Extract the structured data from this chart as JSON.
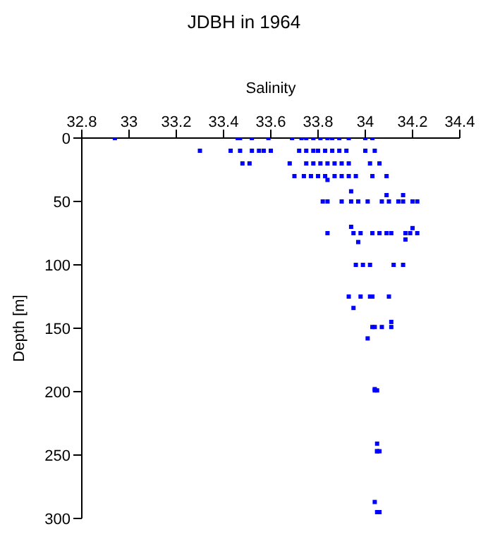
{
  "chart_data": {
    "type": "scatter",
    "title": "JDBH in 1964",
    "xlabel": "Salinity",
    "ylabel": "Depth [m]",
    "xlim": [
      32.8,
      34.4
    ],
    "xticks": [
      32.8,
      33,
      33.2,
      33.4,
      33.6,
      33.8,
      34,
      34.2,
      34.4
    ],
    "ylim": [
      300,
      0
    ],
    "yticks": [
      0,
      50,
      100,
      150,
      200,
      250,
      300
    ],
    "marker": "square",
    "grid": false,
    "legend": false,
    "series": [
      {
        "color": "#0000ff",
        "x": [
          32.94,
          33.46,
          33.47,
          33.52,
          33.59,
          33.69,
          33.73,
          33.75,
          33.78,
          33.81,
          33.84,
          33.86,
          33.89,
          33.93,
          34.0,
          34.03,
          33.3,
          33.43,
          33.47,
          33.52,
          33.55,
          33.57,
          33.6,
          33.72,
          33.75,
          33.78,
          33.8,
          33.83,
          33.86,
          33.89,
          33.92,
          34.0,
          34.04,
          33.48,
          33.51,
          33.68,
          33.75,
          33.78,
          33.81,
          33.84,
          33.87,
          33.9,
          33.93,
          34.02,
          34.06,
          33.7,
          33.74,
          33.77,
          33.8,
          33.83,
          33.87,
          33.9,
          33.93,
          33.96,
          34.03,
          34.09,
          33.84,
          33.94,
          33.82,
          33.84,
          33.9,
          33.94,
          33.97,
          34.01,
          34.07,
          34.1,
          34.14,
          34.16,
          34.2,
          34.22,
          34.09,
          34.16,
          33.94,
          33.84,
          33.95,
          33.98,
          34.03,
          34.06,
          34.09,
          34.11,
          34.17,
          34.19,
          34.22,
          34.2,
          34.17,
          33.97,
          33.96,
          33.99,
          34.02,
          34.12,
          34.16,
          33.93,
          33.98,
          34.02,
          34.03,
          34.1,
          33.95,
          34.03,
          34.04,
          34.07,
          34.11,
          34.11,
          34.01,
          34.04,
          34.05,
          34.04,
          34.05,
          34.06,
          34.05,
          34.05,
          34.06,
          34.05,
          34.04
        ],
        "values": [
          0,
          0,
          0,
          0,
          0,
          0,
          0,
          0,
          0,
          0,
          0,
          0,
          0,
          0,
          0,
          0,
          10,
          10,
          10,
          10,
          10,
          10,
          10,
          10,
          10,
          10,
          10,
          10,
          10,
          10,
          10,
          10,
          10,
          20,
          20,
          20,
          20,
          20,
          20,
          20,
          20,
          20,
          20,
          20,
          20,
          30,
          30,
          30,
          30,
          30,
          30,
          30,
          30,
          30,
          30,
          30,
          33,
          42,
          50,
          50,
          50,
          50,
          50,
          50,
          50,
          50,
          50,
          50,
          50,
          50,
          45,
          45,
          70,
          75,
          75,
          75,
          75,
          75,
          75,
          75,
          75,
          75,
          75,
          71,
          80,
          82,
          100,
          100,
          100,
          100,
          100,
          125,
          125,
          125,
          125,
          125,
          134,
          149,
          149,
          149,
          149,
          145,
          158,
          199,
          199,
          198,
          247,
          247,
          247,
          241,
          295,
          295,
          287
        ]
      }
    ]
  }
}
